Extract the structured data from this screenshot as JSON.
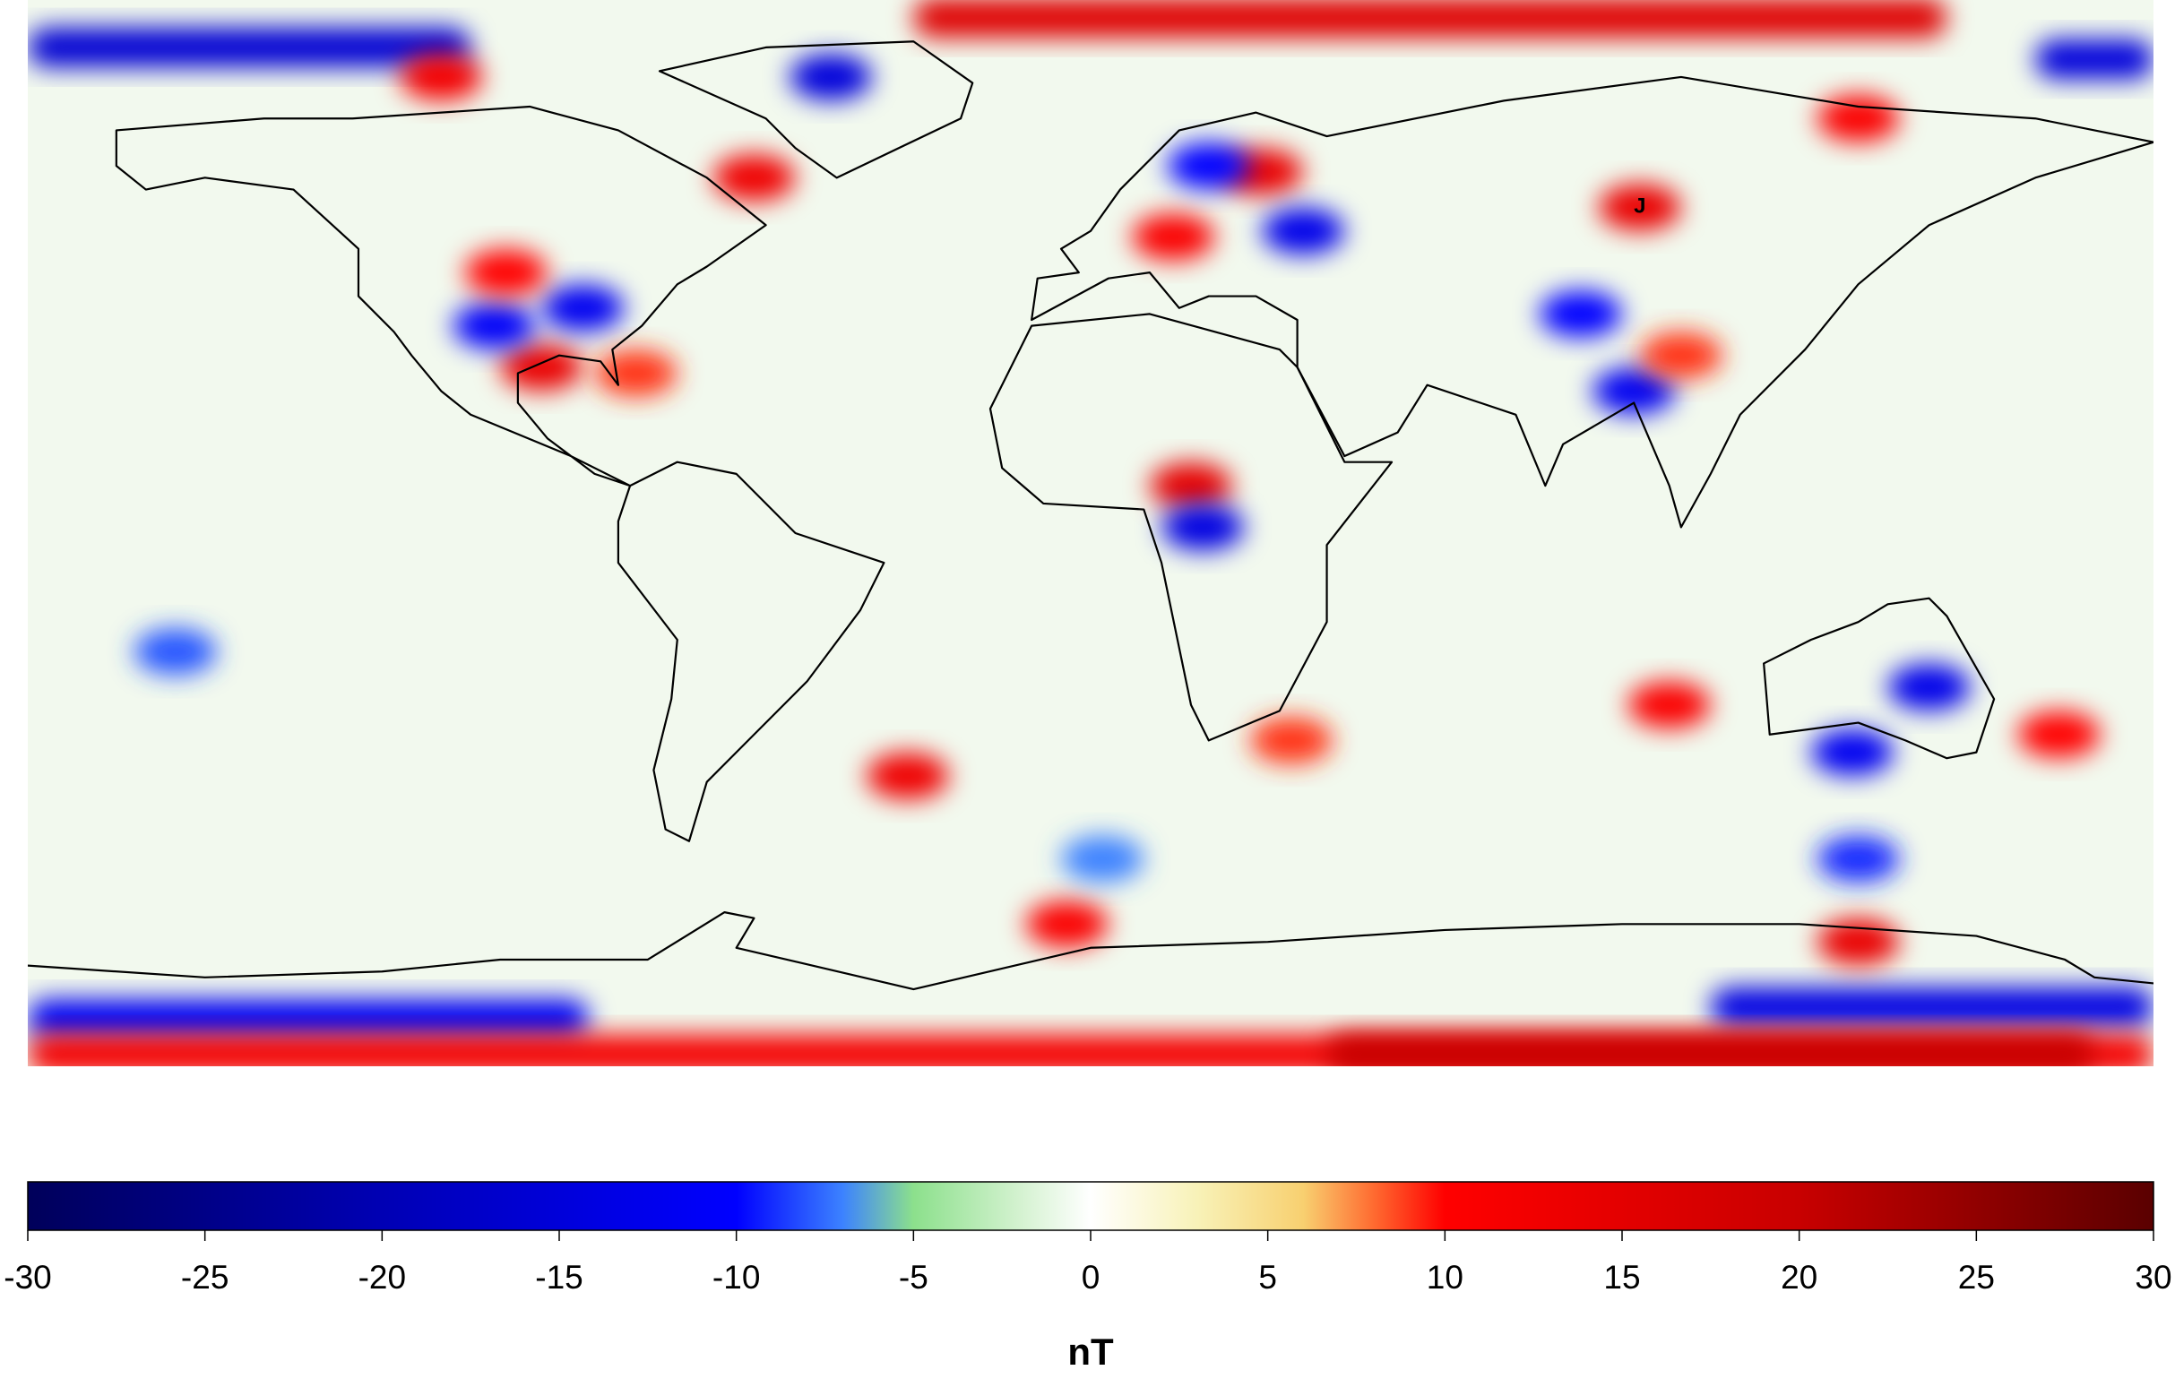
{
  "map": {
    "lon_range": [
      -180,
      180
    ],
    "lat_range": [
      -90,
      90
    ],
    "annotations": [
      {
        "text": "J",
        "lon": 93,
        "lat": 55
      }
    ],
    "bands": [
      {
        "lat": 82,
        "lon_from": -180,
        "lon_to": -105,
        "value": -16
      },
      {
        "lat": 87,
        "lon_from": -30,
        "lon_to": 145,
        "value": 16
      },
      {
        "lat": 80,
        "lon_from": 160,
        "lon_to": 180,
        "value": -15
      },
      {
        "lat": -82,
        "lon_from": -180,
        "lon_to": -85,
        "value": -12
      },
      {
        "lat": -80,
        "lon_from": 105,
        "lon_to": 180,
        "value": -14
      },
      {
        "lat": -88,
        "lon_from": -180,
        "lon_to": 180,
        "value": 12
      },
      {
        "lat": -88,
        "lon_from": 40,
        "lon_to": 170,
        "value": 20
      }
    ],
    "anomalies": [
      {
        "lon": -44,
        "lat": 77,
        "value": -15
      },
      {
        "lon": -110,
        "lat": 77,
        "value": 12
      },
      {
        "lon": -57,
        "lat": 60,
        "value": 13
      },
      {
        "lon": 29,
        "lat": 61,
        "value": 14
      },
      {
        "lon": 36,
        "lat": 51,
        "value": -13
      },
      {
        "lon": 14,
        "lat": 50,
        "value": 11
      },
      {
        "lon": 20,
        "lat": 62,
        "value": -10
      },
      {
        "lon": 93,
        "lat": 55,
        "value": 14
      },
      {
        "lon": 130,
        "lat": 70,
        "value": 11
      },
      {
        "lon": -93,
        "lat": 28,
        "value": 14
      },
      {
        "lon": -86,
        "lat": 38,
        "value": -12
      },
      {
        "lon": -101,
        "lat": 35,
        "value": -11
      },
      {
        "lon": -99,
        "lat": 44,
        "value": 10
      },
      {
        "lon": -77,
        "lat": 27,
        "value": 9
      },
      {
        "lon": 17,
        "lat": 8,
        "value": 15
      },
      {
        "lon": 19,
        "lat": 1,
        "value": -14
      },
      {
        "lon": 92,
        "lat": 24,
        "value": -12
      },
      {
        "lon": 83,
        "lat": 37,
        "value": -10
      },
      {
        "lon": 100,
        "lat": 30,
        "value": 9
      },
      {
        "lon": -31,
        "lat": -41,
        "value": 13
      },
      {
        "lon": 34,
        "lat": -35,
        "value": 9
      },
      {
        "lon": 142,
        "lat": -26,
        "value": -13
      },
      {
        "lon": 129,
        "lat": -37,
        "value": -12
      },
      {
        "lon": 98,
        "lat": -29,
        "value": 11
      },
      {
        "lon": 164,
        "lat": -34,
        "value": 10
      },
      {
        "lon": 130,
        "lat": -69,
        "value": 14
      },
      {
        "lon": -4,
        "lat": -66,
        "value": 11
      },
      {
        "lon": 130,
        "lat": -55,
        "value": -9
      },
      {
        "lon": -155,
        "lat": -20,
        "value": -8
      },
      {
        "lon": 2,
        "lat": -55,
        "value": -7
      }
    ]
  },
  "colorbar": {
    "label": "nT",
    "limits": [
      -30,
      30
    ],
    "ticks": [
      -30,
      -25,
      -20,
      -15,
      -10,
      -5,
      0,
      5,
      10,
      15,
      20,
      25,
      30
    ],
    "stops": [
      {
        "value": -30,
        "color": "#00005a"
      },
      {
        "value": -20,
        "color": "#0000b4"
      },
      {
        "value": -10,
        "color": "#0000ff"
      },
      {
        "value": -7,
        "color": "#3c82ff"
      },
      {
        "value": -5,
        "color": "#8ce08c"
      },
      {
        "value": -2,
        "color": "#d4f2d0"
      },
      {
        "value": 0,
        "color": "#ffffff"
      },
      {
        "value": 3,
        "color": "#f8f2b8"
      },
      {
        "value": 6,
        "color": "#f8d070"
      },
      {
        "value": 8,
        "color": "#ff6a30"
      },
      {
        "value": 10,
        "color": "#ff0000"
      },
      {
        "value": 20,
        "color": "#c80000"
      },
      {
        "value": 30,
        "color": "#5a0000"
      }
    ]
  }
}
